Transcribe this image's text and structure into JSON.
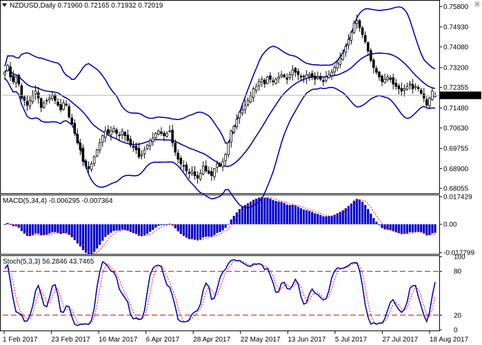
{
  "header": {
    "main": "NZDUSD,Daily  0.71960 0.72165 0.71932 0.72019",
    "macd": "MACD(5,34,4) -0.006295 -0.007364",
    "stoch": "Stoch(5,3,3) 56.2846 43.7465"
  },
  "colors": {
    "band": "#0000b4",
    "candle": "#000000",
    "macd_hist": "#0000cc",
    "signal": "#ff0000",
    "stoch_main": "#0000b4",
    "level": "#cc0000",
    "price_label_bg": "#000000",
    "price_label_fg": "#ffffff"
  },
  "chart_data": [
    {
      "type": "candlestick",
      "title": "NZDUSD,Daily",
      "ohlc_last": {
        "open": 0.7196,
        "high": 0.72165,
        "low": 0.71932,
        "close": 0.72019
      },
      "current_price": 0.72019,
      "current_price_label": "0.72019",
      "ylim": [
        0.68,
        0.759
      ],
      "yticks": [
        "0.75800",
        "0.74930",
        "0.74080",
        "0.73200",
        "0.72355",
        "0.71480",
        "0.70630",
        "0.69755",
        "0.68900",
        "0.68055"
      ],
      "xticks": [
        "1 Feb 2017",
        "23 Feb 2017",
        "16 Mar 2017",
        "6 Apr 2017",
        "28 Apr 2017",
        "22 May 2017",
        "13 Jun 2017",
        "5 Jul 2017",
        "27 Jul 2017",
        "18 Aug 2017"
      ],
      "overlay": "Bollinger Bands",
      "closes": [
        0.73,
        0.733,
        0.728,
        0.726,
        0.728,
        0.725,
        0.719,
        0.718,
        0.716,
        0.718,
        0.72,
        0.722,
        0.719,
        0.715,
        0.717,
        0.718,
        0.719,
        0.72,
        0.718,
        0.716,
        0.714,
        0.717,
        0.716,
        0.711,
        0.708,
        0.704,
        0.7,
        0.697,
        0.692,
        0.69,
        0.689,
        0.691,
        0.694,
        0.697,
        0.7,
        0.703,
        0.705,
        0.704,
        0.705,
        0.706,
        0.704,
        0.703,
        0.705,
        0.703,
        0.701,
        0.699,
        0.698,
        0.697,
        0.694,
        0.695,
        0.697,
        0.699,
        0.701,
        0.702,
        0.704,
        0.705,
        0.704,
        0.703,
        0.704,
        0.705,
        0.7,
        0.696,
        0.693,
        0.691,
        0.69,
        0.688,
        0.687,
        0.688,
        0.686,
        0.685,
        0.687,
        0.69,
        0.688,
        0.687,
        0.686,
        0.689,
        0.691,
        0.69,
        0.692,
        0.695,
        0.7,
        0.705,
        0.707,
        0.71,
        0.713,
        0.714,
        0.716,
        0.718,
        0.72,
        0.723,
        0.724,
        0.726,
        0.727,
        0.725,
        0.728,
        0.727,
        0.726,
        0.727,
        0.728,
        0.729,
        0.728,
        0.727,
        0.729,
        0.731,
        0.73,
        0.729,
        0.728,
        0.728,
        0.729,
        0.729,
        0.728,
        0.727,
        0.728,
        0.727,
        0.726,
        0.728,
        0.729,
        0.73,
        0.732,
        0.734,
        0.736,
        0.738,
        0.741,
        0.744,
        0.747,
        0.751,
        0.752,
        0.749,
        0.746,
        0.743,
        0.739,
        0.735,
        0.732,
        0.73,
        0.728,
        0.726,
        0.727,
        0.728,
        0.727,
        0.725,
        0.724,
        0.723,
        0.722,
        0.723,
        0.724,
        0.725,
        0.723,
        0.724,
        0.723,
        0.721,
        0.719,
        0.716,
        0.719,
        0.722,
        0.72019
      ]
    },
    {
      "type": "bar",
      "title": "MACD(5,34,4)",
      "macd_value": -0.006295,
      "signal_value": -0.007364,
      "ylim": [
        -0.01779,
        0.01742
      ],
      "yticks": [
        "0.017429",
        "0.00",
        "-0.017799"
      ]
    },
    {
      "type": "line",
      "title": "Stoch(5,3,3)",
      "main_value": 56.2846,
      "signal_value": 43.7465,
      "ylim": [
        0,
        100
      ],
      "levels": [
        20,
        80
      ],
      "yticks": [
        "100",
        "80",
        "20",
        "0"
      ]
    }
  ]
}
